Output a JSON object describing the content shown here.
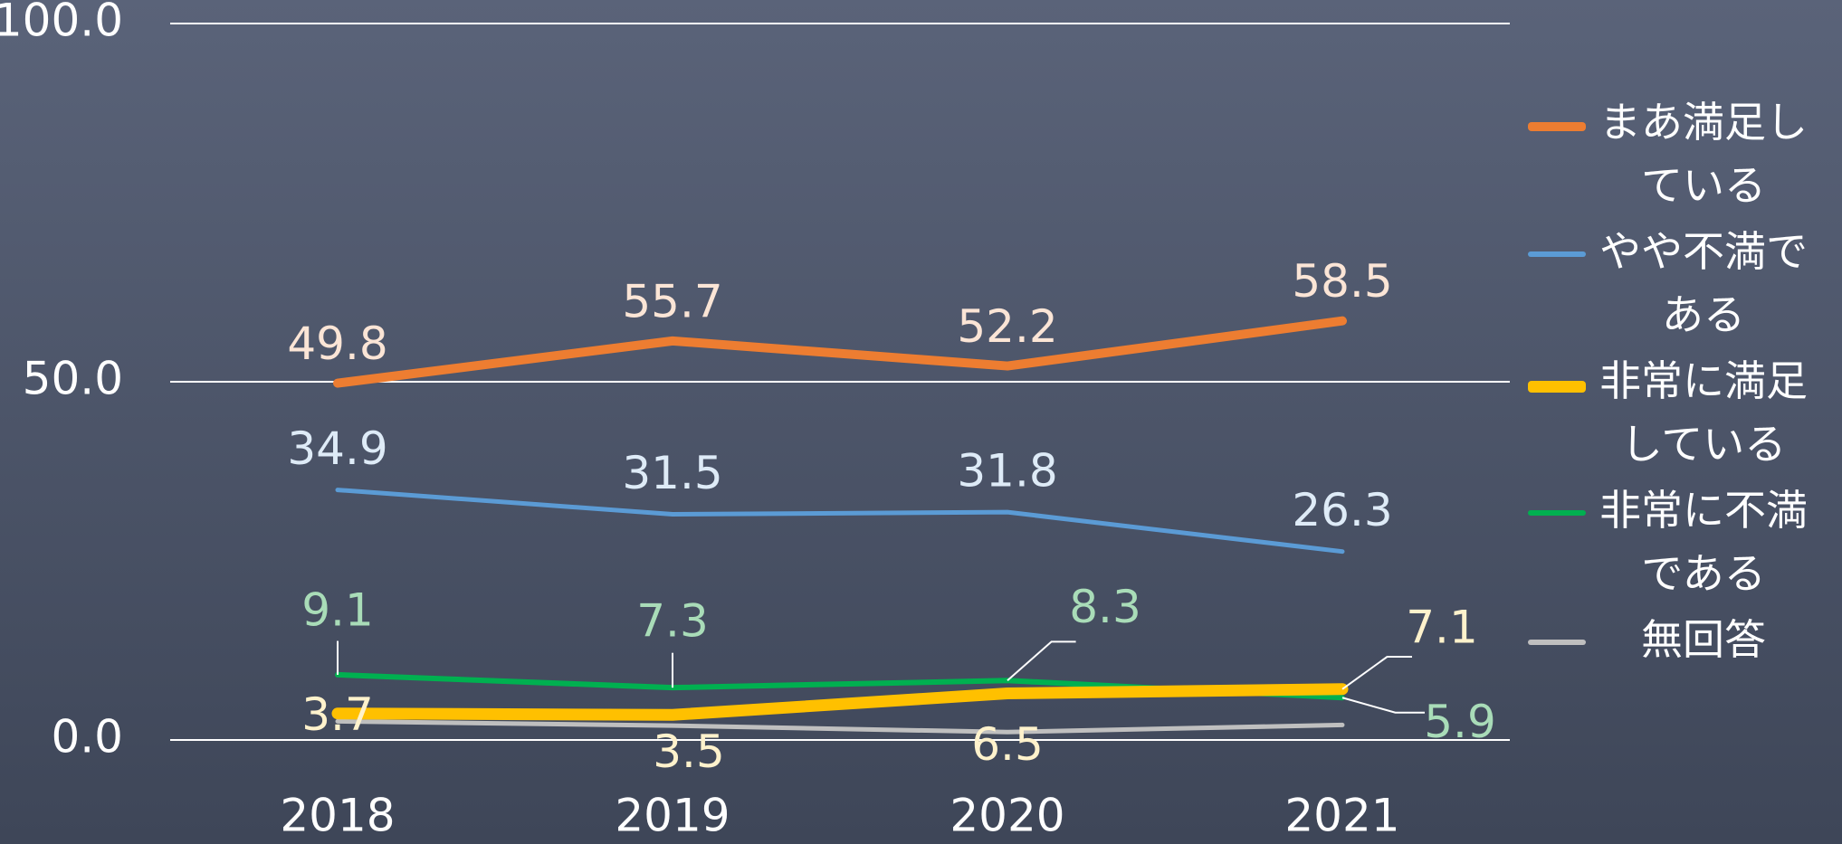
{
  "chart_data": {
    "type": "line",
    "categories": [
      "2018",
      "2019",
      "2020",
      "2021"
    ],
    "series": [
      {
        "name": "まあ満足している",
        "color": "#ed7d31",
        "label_color": "#fbe5d6",
        "values": [
          49.8,
          55.7,
          52.2,
          58.5
        ]
      },
      {
        "name": "やや不満である",
        "color": "#5b9bd5",
        "label_color": "#deebf7",
        "values": [
          34.9,
          31.5,
          31.8,
          26.3
        ]
      },
      {
        "name": "非常に満足している",
        "color": "#ffc000",
        "label_color": "#fff2cc",
        "values": [
          3.7,
          3.5,
          6.5,
          7.1
        ]
      },
      {
        "name": "非常に不満である",
        "color": "#00b050",
        "label_color": "#a9dcb8",
        "values": [
          9.1,
          7.3,
          8.3,
          5.9
        ]
      },
      {
        "name": "無回答",
        "color": "#bfbfbf",
        "values": [
          2.6,
          2.0,
          1.1,
          2.1
        ]
      }
    ],
    "ylim": [
      0,
      100
    ],
    "yticks": [
      {
        "value": 0,
        "label": "0.0"
      },
      {
        "value": 50,
        "label": "50.0"
      },
      {
        "value": 100,
        "label": "100.0"
      }
    ],
    "grid": true,
    "legend": "right"
  }
}
